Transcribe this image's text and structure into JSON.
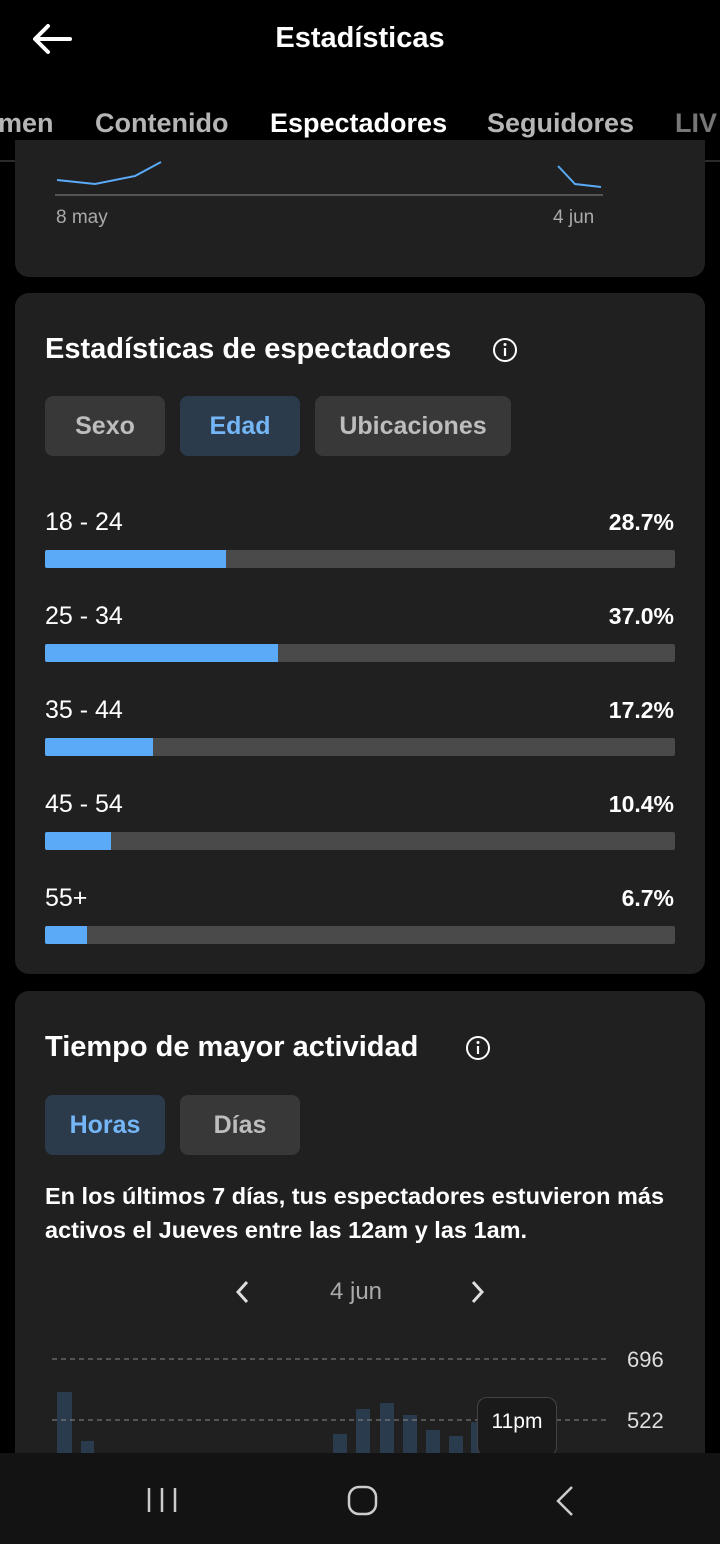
{
  "header": {
    "title": "Estadísticas"
  },
  "tabs": [
    "men",
    "Contenido",
    "Espectadores",
    "Seguidores",
    "LIV"
  ],
  "selected_tab": 2,
  "trend_card": {
    "x_labels": [
      "8 may",
      "4 jun"
    ]
  },
  "viewer_stats": {
    "title": "Estadísticas de espectadores",
    "filters": [
      "Sexo",
      "Edad",
      "Ubicaciones"
    ],
    "selected_filter": 1,
    "age_rows": [
      {
        "label": "18 - 24",
        "value": 28.7,
        "value_label": "28.7%"
      },
      {
        "label": "25 - 34",
        "value": 37.0,
        "value_label": "37.0%"
      },
      {
        "label": "35 - 44",
        "value": 17.2,
        "value_label": "17.2%"
      },
      {
        "label": "45 - 54",
        "value": 10.4,
        "value_label": "10.4%"
      },
      {
        "label": "55+",
        "value": 6.7,
        "value_label": "6.7%"
      }
    ]
  },
  "activity": {
    "title": "Tiempo de mayor actividad",
    "filters": [
      "Horas",
      "Días"
    ],
    "selected_filter": 0,
    "summary": "En los últimos 7 días, tus espectadores estuvieron más activos el Jueves entre las 12am y las 1am.",
    "date": "4 jun",
    "yticks": [
      696,
      522
    ],
    "tooltip": "11pm"
  }
}
